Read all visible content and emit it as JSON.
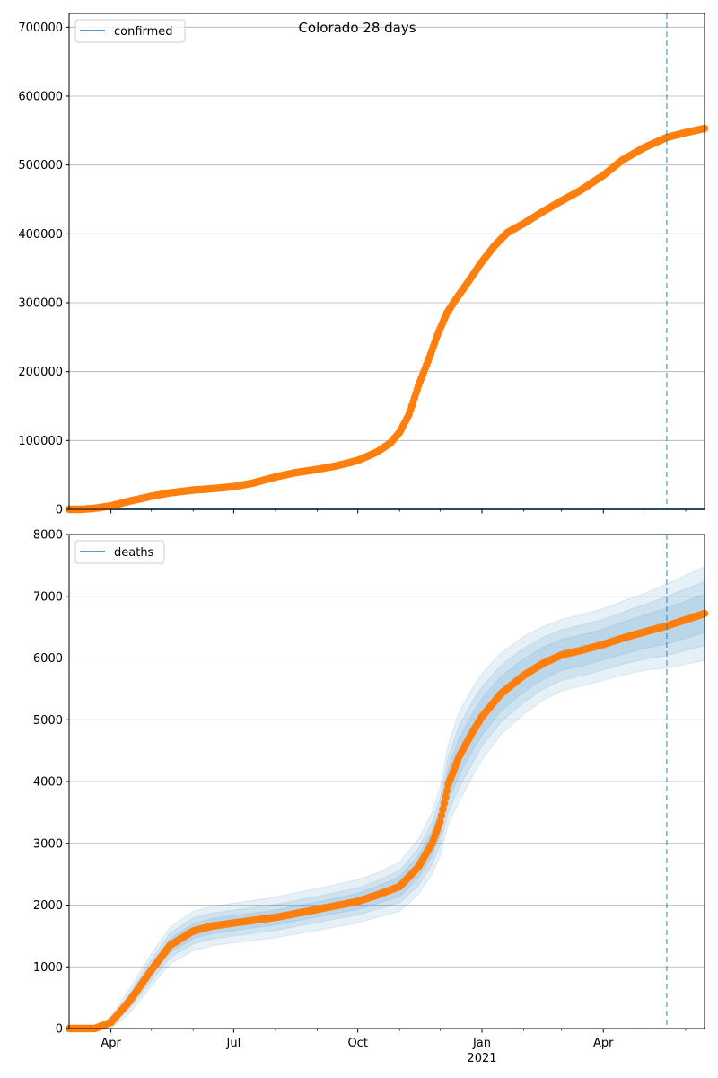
{
  "figure": {
    "title": "Colorado 28 days",
    "year_label": "2021"
  },
  "chart_data": [
    {
      "type": "scatter",
      "panel": "confirmed",
      "title": "Colorado 28 days",
      "legend": {
        "entries": [
          "confirmed"
        ],
        "placement": "top-left"
      },
      "xlabel": "",
      "ylabel": "",
      "x_ticks": [
        "Apr",
        "Jul",
        "Oct",
        "Jan",
        "Apr"
      ],
      "x_range": [
        "2020-03-01",
        "2021-06-15"
      ],
      "ylim": [
        0,
        720000
      ],
      "y_ticks": [
        0,
        100000,
        200000,
        300000,
        400000,
        500000,
        600000,
        700000
      ],
      "grid": "horizontal",
      "forecast_start": "2021-05-18",
      "series": [
        {
          "name": "confirmed",
          "kind": "line",
          "color": "#1f77b4",
          "x": [
            "2020-03-01",
            "2021-06-15"
          ],
          "y": [
            0,
            0
          ]
        },
        {
          "kind": "markers",
          "color": "#ff7f0e",
          "x": [
            "2020-03-01",
            "2020-03-10",
            "2020-03-20",
            "2020-04-01",
            "2020-04-15",
            "2020-05-01",
            "2020-05-15",
            "2020-06-01",
            "2020-06-15",
            "2020-07-01",
            "2020-07-15",
            "2020-08-01",
            "2020-08-15",
            "2020-09-01",
            "2020-09-15",
            "2020-10-01",
            "2020-10-15",
            "2020-10-25",
            "2020-11-01",
            "2020-11-08",
            "2020-11-15",
            "2020-11-22",
            "2020-11-29",
            "2020-12-06",
            "2020-12-13",
            "2020-12-20",
            "2020-12-31",
            "2021-01-10",
            "2021-01-20",
            "2021-02-01",
            "2021-02-15",
            "2021-03-01",
            "2021-03-15",
            "2021-04-01",
            "2021-04-15",
            "2021-05-01",
            "2021-05-18",
            "2021-06-01",
            "2021-06-15"
          ],
          "y": [
            0,
            0,
            1500,
            5000,
            12000,
            19000,
            24000,
            28000,
            30000,
            33000,
            38000,
            47000,
            53000,
            58000,
            63000,
            71000,
            83000,
            96000,
            112000,
            138000,
            180000,
            215000,
            253000,
            285000,
            306000,
            325000,
            357000,
            382000,
            402000,
            415000,
            432000,
            448000,
            463000,
            485000,
            507000,
            525000,
            540000,
            547000,
            553000
          ]
        }
      ]
    },
    {
      "type": "scatter",
      "panel": "deaths",
      "legend": {
        "entries": [
          "deaths"
        ],
        "placement": "top-left"
      },
      "xlabel": "",
      "ylabel": "",
      "x_ticks": [
        "Apr",
        "Jul",
        "Oct",
        "Jan",
        "Apr"
      ],
      "x_range": [
        "2020-03-01",
        "2021-06-15"
      ],
      "ylim": [
        0,
        8000
      ],
      "y_ticks": [
        0,
        1000,
        2000,
        3000,
        4000,
        5000,
        6000,
        7000,
        8000
      ],
      "grid": "horizontal",
      "forecast_start": "2021-05-18",
      "series": [
        {
          "name": "deaths",
          "kind": "line",
          "color": "#1f77b4",
          "x": [
            "2020-03-01",
            "2020-03-20",
            "2020-04-01",
            "2020-04-15",
            "2020-05-01",
            "2020-05-15",
            "2020-06-01",
            "2020-06-15",
            "2020-07-01",
            "2020-08-01",
            "2020-09-01",
            "2020-10-01",
            "2020-10-15",
            "2020-11-01",
            "2020-11-15",
            "2020-11-25",
            "2020-12-01",
            "2020-12-07",
            "2020-12-15",
            "2020-12-25",
            "2021-01-01",
            "2021-01-15",
            "2021-02-01",
            "2021-02-15",
            "2021-03-01",
            "2021-03-15",
            "2021-04-01",
            "2021-04-15",
            "2021-05-01",
            "2021-05-18",
            "2021-06-01",
            "2021-06-15"
          ],
          "y": [
            0,
            0,
            100,
            450,
            950,
            1350,
            1580,
            1660,
            1710,
            1800,
            1930,
            2060,
            2160,
            2300,
            2620,
            3000,
            3350,
            3950,
            4400,
            4800,
            5050,
            5420,
            5720,
            5910,
            6050,
            6120,
            6220,
            6320,
            6420,
            6520,
            6620,
            6720
          ]
        },
        {
          "kind": "markers",
          "color": "#ff7f0e",
          "x": [
            "2020-03-01",
            "2020-03-20",
            "2020-04-01",
            "2020-04-15",
            "2020-05-01",
            "2020-05-15",
            "2020-06-01",
            "2020-06-15",
            "2020-07-01",
            "2020-08-01",
            "2020-09-01",
            "2020-10-01",
            "2020-10-15",
            "2020-11-01",
            "2020-11-15",
            "2020-11-25",
            "2020-12-01",
            "2020-12-07",
            "2020-12-15",
            "2020-12-25",
            "2021-01-01",
            "2021-01-15",
            "2021-02-01",
            "2021-02-15",
            "2021-03-01",
            "2021-03-15",
            "2021-04-01",
            "2021-04-15",
            "2021-05-01",
            "2021-05-18",
            "2021-06-01",
            "2021-06-15"
          ],
          "y": [
            0,
            0,
            100,
            450,
            950,
            1350,
            1580,
            1660,
            1710,
            1800,
            1930,
            2060,
            2160,
            2300,
            2620,
            3000,
            3350,
            3950,
            4400,
            4800,
            5050,
            5420,
            5720,
            5910,
            6050,
            6120,
            6220,
            6320,
            6420,
            6520,
            6620,
            6720
          ]
        }
      ],
      "bands": {
        "color": "#1f77b4",
        "x": [
          "2020-03-01",
          "2020-03-20",
          "2020-04-01",
          "2020-04-15",
          "2020-05-01",
          "2020-05-15",
          "2020-06-01",
          "2020-06-15",
          "2020-07-01",
          "2020-08-01",
          "2020-09-01",
          "2020-10-01",
          "2020-10-15",
          "2020-11-01",
          "2020-11-15",
          "2020-11-25",
          "2020-12-01",
          "2020-12-07",
          "2020-12-15",
          "2020-12-25",
          "2021-01-01",
          "2021-01-15",
          "2021-02-01",
          "2021-02-15",
          "2021-03-01",
          "2021-03-15",
          "2021-04-01",
          "2021-04-15",
          "2021-05-01",
          "2021-05-18",
          "2021-06-01",
          "2021-06-15"
        ],
        "half_widths": [
          [
            0,
            0,
            30,
            60,
            90,
            110,
            120,
            120,
            120,
            120,
            120,
            130,
            140,
            160,
            180,
            200,
            220,
            260,
            300,
            300,
            300,
            280,
            270,
            260,
            250,
            250,
            250,
            260,
            270,
            290,
            300,
            310
          ],
          [
            0,
            0,
            60,
            120,
            170,
            200,
            210,
            210,
            210,
            210,
            210,
            220,
            230,
            260,
            300,
            340,
            380,
            450,
            500,
            500,
            480,
            460,
            440,
            420,
            410,
            410,
            410,
            420,
            440,
            480,
            500,
            520
          ],
          [
            0,
            0,
            100,
            200,
            260,
            300,
            320,
            320,
            320,
            330,
            340,
            350,
            360,
            400,
            450,
            500,
            560,
            650,
            720,
            720,
            700,
            660,
            630,
            600,
            580,
            580,
            580,
            600,
            620,
            680,
            720,
            760
          ]
        ]
      }
    }
  ]
}
